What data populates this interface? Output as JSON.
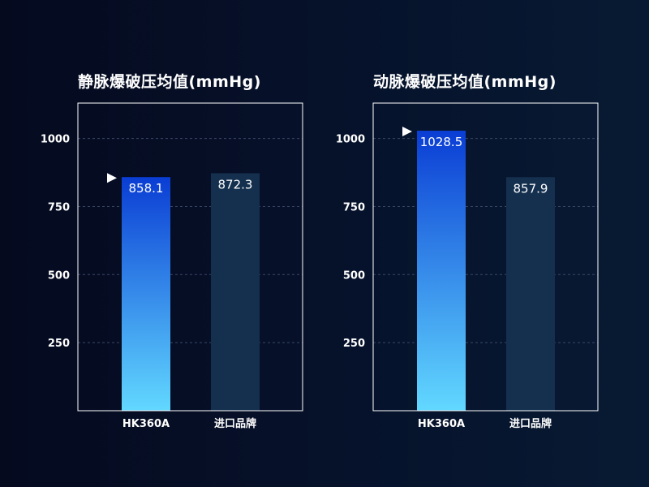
{
  "colors": {
    "background": "#06122b",
    "frame": "#ffffff",
    "grid": "#3a4766",
    "highlight_bar_top": "#0a3dd4",
    "highlight_bar_bottom": "#62d8ff",
    "other_bar": "#15304f",
    "marker": "#ffffff"
  },
  "chart_data": [
    {
      "type": "bar",
      "title": "静脉爆破压均值(mmHg)",
      "categories": [
        "HK360A",
        "进口品牌"
      ],
      "values": [
        858.1,
        872.3
      ],
      "value_labels": [
        "858.1",
        "872.3"
      ],
      "highlight_index": 0,
      "ylim": [
        0,
        1130
      ],
      "yticks": [
        250,
        500,
        750,
        1000
      ],
      "grid": true,
      "grid_style": "dashed",
      "xlabel": "",
      "ylabel": ""
    },
    {
      "type": "bar",
      "title": "动脉爆破压均值(mmHg)",
      "categories": [
        "HK360A",
        "进口品牌"
      ],
      "values": [
        1028.5,
        857.9
      ],
      "value_labels": [
        "1028.5",
        "857.9"
      ],
      "highlight_index": 0,
      "ylim": [
        0,
        1130
      ],
      "yticks": [
        250,
        500,
        750,
        1000
      ],
      "grid": true,
      "grid_style": "dashed",
      "xlabel": "",
      "ylabel": ""
    }
  ]
}
